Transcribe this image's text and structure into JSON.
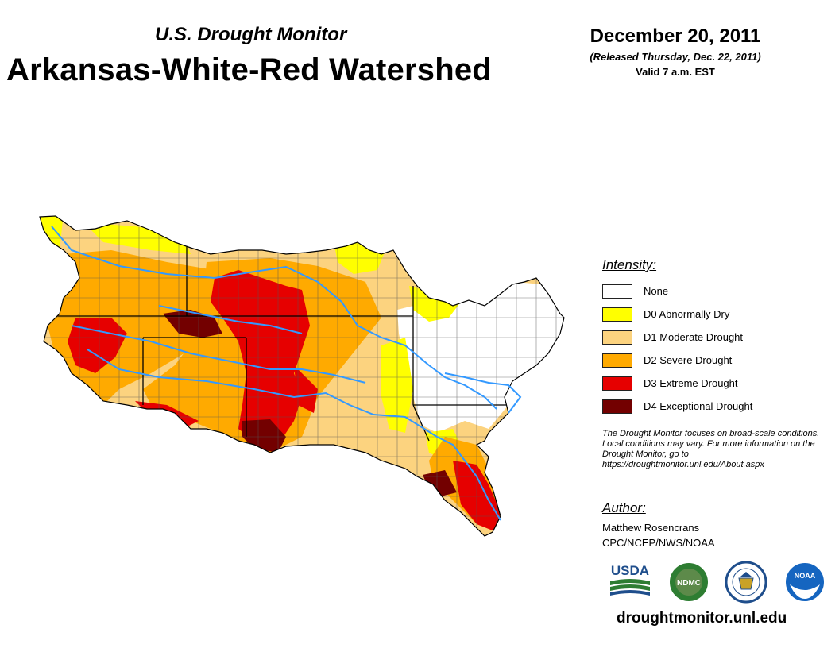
{
  "header": {
    "subtitle": "U.S. Drought Monitor",
    "title": "Arkansas-White-Red Watershed",
    "date": "December 20, 2011",
    "released": "(Released Thursday, Dec. 22, 2011)",
    "valid": "Valid 7 a.m. EST"
  },
  "legend": {
    "heading": "Intensity:",
    "items": [
      {
        "label": "None",
        "color": "#ffffff"
      },
      {
        "label": "D0 Abnormally Dry",
        "color": "#ffff00"
      },
      {
        "label": "D1 Moderate Drought",
        "color": "#fcd37f"
      },
      {
        "label": "D2 Severe Drought",
        "color": "#ffaa00"
      },
      {
        "label": "D3 Extreme Drought",
        "color": "#e60000"
      },
      {
        "label": "D4 Exceptional Drought",
        "color": "#730000"
      }
    ]
  },
  "note": "The Drought Monitor focuses on broad-scale conditions. Local conditions may vary. For more information on the Drought Monitor, go to https://droughtmonitor.unl.edu/About.aspx",
  "author": {
    "heading": "Author:",
    "name": "Matthew Rosencrans",
    "org": "CPC/NCEP/NWS/NOAA"
  },
  "logos": {
    "usda": "USDA",
    "ndmc": "NDMC",
    "noaa": "NOAA"
  },
  "website": "droughtmonitor.unl.edu",
  "colors": {
    "river": "#3399ff",
    "border": "#000000",
    "county": "#555555"
  }
}
